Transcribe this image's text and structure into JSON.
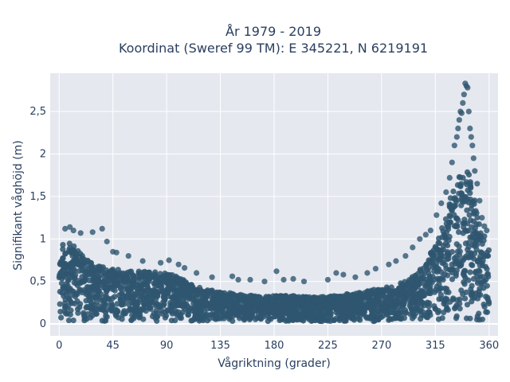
{
  "chart_data": {
    "type": "scatter",
    "title_line1": "År 1979 - 2019",
    "title_line2": "Koordinat (Sweref 99 TM): E 345221, N 6219191",
    "xlabel": "Vågriktning (grader)",
    "ylabel": "Signifikant våghöjd (m)",
    "xlim": [
      -7.5,
      367.5
    ],
    "ylim": [
      -0.14,
      2.95
    ],
    "x_ticks": [
      0,
      45,
      90,
      135,
      180,
      225,
      270,
      315,
      360
    ],
    "x_tick_labels": [
      "0",
      "45",
      "90",
      "135",
      "180",
      "225",
      "270",
      "315",
      "360"
    ],
    "y_ticks": [
      0,
      0.5,
      1,
      1.5,
      2,
      2.5
    ],
    "y_tick_labels": [
      "0",
      "0,5",
      "1",
      "1,5",
      "2",
      "2,5"
    ],
    "grid": true,
    "marker_color": "#2f5670",
    "plot_background": "#e5e8ef",
    "envelope": {
      "direction_deg": [
        0,
        5,
        10,
        20,
        30,
        45,
        60,
        75,
        90,
        100,
        110,
        120,
        135,
        150,
        165,
        180,
        195,
        210,
        225,
        240,
        255,
        270,
        280,
        290,
        300,
        305,
        310,
        315,
        320,
        325,
        330,
        335,
        340,
        345,
        350,
        355,
        360
      ],
      "dense_max_height_m": [
        0.95,
        0.98,
        0.95,
        0.8,
        0.7,
        0.65,
        0.62,
        0.62,
        0.6,
        0.55,
        0.48,
        0.42,
        0.38,
        0.35,
        0.33,
        0.33,
        0.33,
        0.32,
        0.32,
        0.35,
        0.38,
        0.42,
        0.45,
        0.5,
        0.6,
        0.7,
        0.8,
        0.95,
        1.1,
        1.35,
        1.6,
        1.8,
        1.9,
        1.7,
        1.3,
        1.1,
        0.9
      ]
    },
    "points": [
      [
        5,
        1.12
      ],
      [
        9,
        1.14
      ],
      [
        12,
        1.1
      ],
      [
        18,
        1.07
      ],
      [
        28,
        1.08
      ],
      [
        36,
        1.12
      ],
      [
        40,
        0.97
      ],
      [
        45,
        0.85
      ],
      [
        48,
        0.84
      ],
      [
        58,
        0.8
      ],
      [
        70,
        0.74
      ],
      [
        85,
        0.72
      ],
      [
        92,
        0.75
      ],
      [
        100,
        0.7
      ],
      [
        105,
        0.66
      ],
      [
        115,
        0.6
      ],
      [
        128,
        0.55
      ],
      [
        145,
        0.56
      ],
      [
        150,
        0.52
      ],
      [
        160,
        0.52
      ],
      [
        172,
        0.5
      ],
      [
        182,
        0.62
      ],
      [
        188,
        0.52
      ],
      [
        196,
        0.53
      ],
      [
        205,
        0.5
      ],
      [
        225,
        0.52
      ],
      [
        232,
        0.6
      ],
      [
        238,
        0.58
      ],
      [
        248,
        0.55
      ],
      [
        258,
        0.6
      ],
      [
        265,
        0.65
      ],
      [
        276,
        0.7
      ],
      [
        282,
        0.74
      ],
      [
        290,
        0.8
      ],
      [
        296,
        0.9
      ],
      [
        302,
        1.0
      ],
      [
        307,
        1.05
      ],
      [
        311,
        1.1
      ],
      [
        316,
        1.28
      ],
      [
        320,
        1.42
      ],
      [
        324,
        1.55
      ],
      [
        327,
        1.72
      ],
      [
        329,
        1.9
      ],
      [
        331,
        2.1
      ],
      [
        333,
        2.2
      ],
      [
        334,
        2.3
      ],
      [
        335,
        2.4
      ],
      [
        336,
        2.5
      ],
      [
        337,
        2.48
      ],
      [
        338,
        2.6
      ],
      [
        339,
        2.7
      ],
      [
        340,
        2.83
      ],
      [
        341,
        2.8
      ],
      [
        342,
        2.78
      ],
      [
        343,
        2.5
      ],
      [
        344,
        2.3
      ],
      [
        345,
        2.2
      ],
      [
        346,
        2.1
      ],
      [
        347,
        1.95
      ],
      [
        348,
        1.8
      ],
      [
        350,
        1.65
      ],
      [
        352,
        1.45
      ],
      [
        354,
        1.25
      ],
      [
        356,
        1.15
      ],
      [
        358,
        1.1
      ]
    ]
  }
}
